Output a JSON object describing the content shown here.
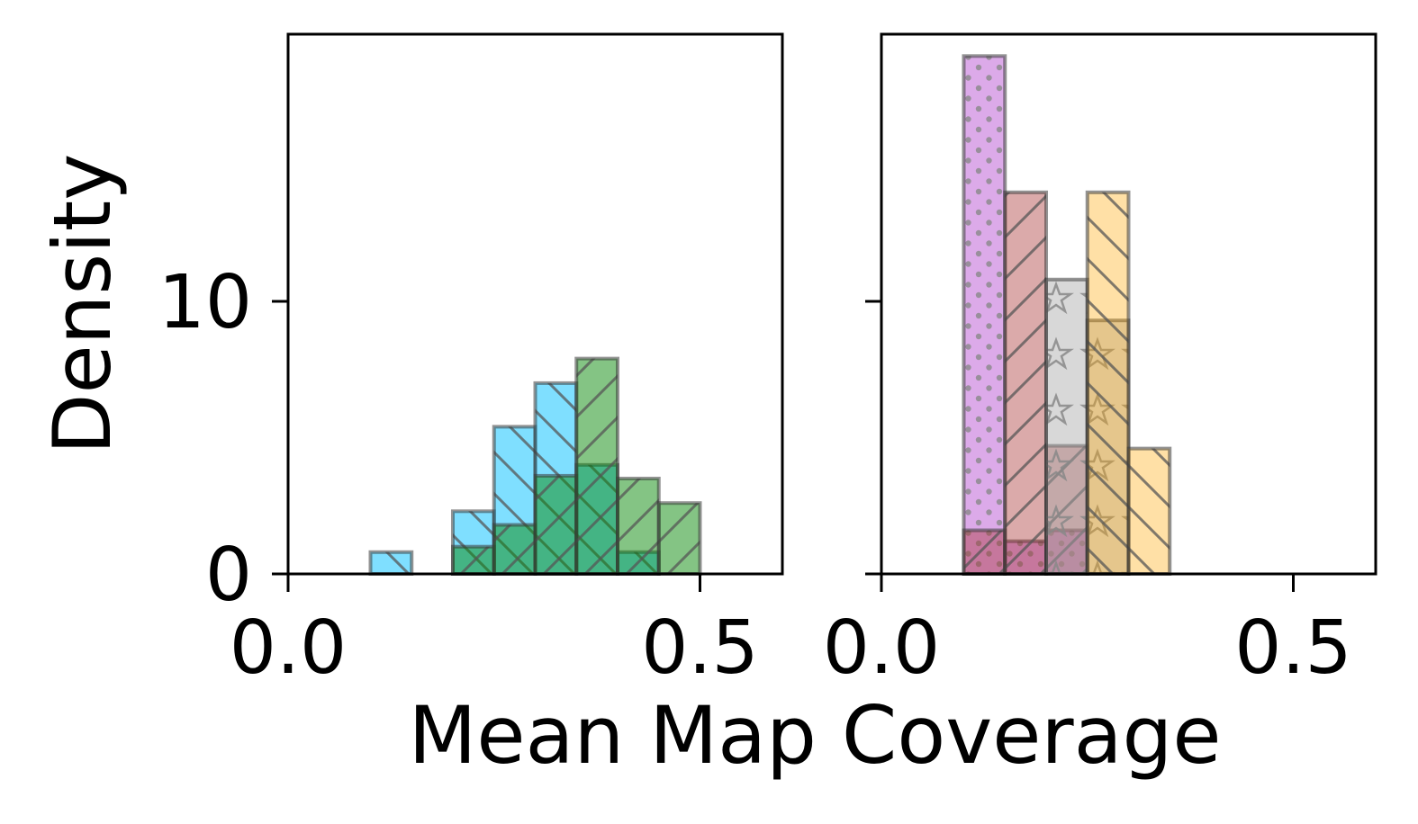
{
  "chart_data": [
    {
      "type": "histogram",
      "panel": "left",
      "xlim": [
        0.0,
        0.6
      ],
      "ylim": [
        0,
        20
      ],
      "xticks": [
        0.0,
        0.5
      ],
      "xtick_labels": [
        "0.0",
        "0.5"
      ],
      "yticks": [
        0,
        10
      ],
      "ytick_labels": [
        "0",
        "10"
      ],
      "bin_width": 0.05,
      "grid": false,
      "series": [
        {
          "color": "#00bfff",
          "hatch": "backslash",
          "bins": [
            {
              "left": 0.1,
              "density": 0.8
            },
            {
              "left": 0.2,
              "density": 2.3
            },
            {
              "left": 0.25,
              "density": 5.4
            },
            {
              "left": 0.3,
              "density": 7.0
            },
            {
              "left": 0.35,
              "density": 4.0
            },
            {
              "left": 0.4,
              "density": 0.8
            }
          ]
        },
        {
          "color": "#0a8a0a",
          "hatch": "slash",
          "bins": [
            {
              "left": 0.2,
              "density": 1.0
            },
            {
              "left": 0.25,
              "density": 1.8
            },
            {
              "left": 0.3,
              "density": 3.6
            },
            {
              "left": 0.35,
              "density": 7.9
            },
            {
              "left": 0.4,
              "density": 3.5
            },
            {
              "left": 0.45,
              "density": 2.6
            }
          ]
        }
      ]
    },
    {
      "type": "histogram",
      "panel": "right",
      "xlim": [
        0.0,
        0.6
      ],
      "ylim": [
        0,
        20
      ],
      "xticks": [
        0.0,
        0.5
      ],
      "xtick_labels": [
        "0.0",
        "0.5"
      ],
      "yticks": [
        0,
        10
      ],
      "ytick_labels": [
        "",
        ""
      ],
      "bin_width": 0.05,
      "grid": false,
      "series": [
        {
          "color": "#ba55d3",
          "hatch": "dots",
          "bins": [
            {
              "left": 0.1,
              "density": 19.0
            },
            {
              "left": 0.15,
              "density": 1.2
            },
            {
              "left": 0.2,
              "density": 1.6
            }
          ]
        },
        {
          "color": "#a52a2a",
          "hatch": "slash",
          "bins": [
            {
              "left": 0.1,
              "density": 1.6
            },
            {
              "left": 0.15,
              "density": 14.0
            },
            {
              "left": 0.2,
              "density": 4.7
            }
          ]
        },
        {
          "color": "#a9a9a9",
          "hatch": "stars",
          "bins": [
            {
              "left": 0.2,
              "density": 10.8
            },
            {
              "left": 0.25,
              "density": 9.3
            }
          ]
        },
        {
          "color": "#ffa500",
          "hatch": "backslash",
          "bins": [
            {
              "left": 0.25,
              "density": 14.0
            },
            {
              "left": 0.3,
              "density": 4.6
            }
          ]
        }
      ]
    }
  ],
  "labels": {
    "ylabel": "Density",
    "xlabel": "Mean Map Coverage"
  }
}
